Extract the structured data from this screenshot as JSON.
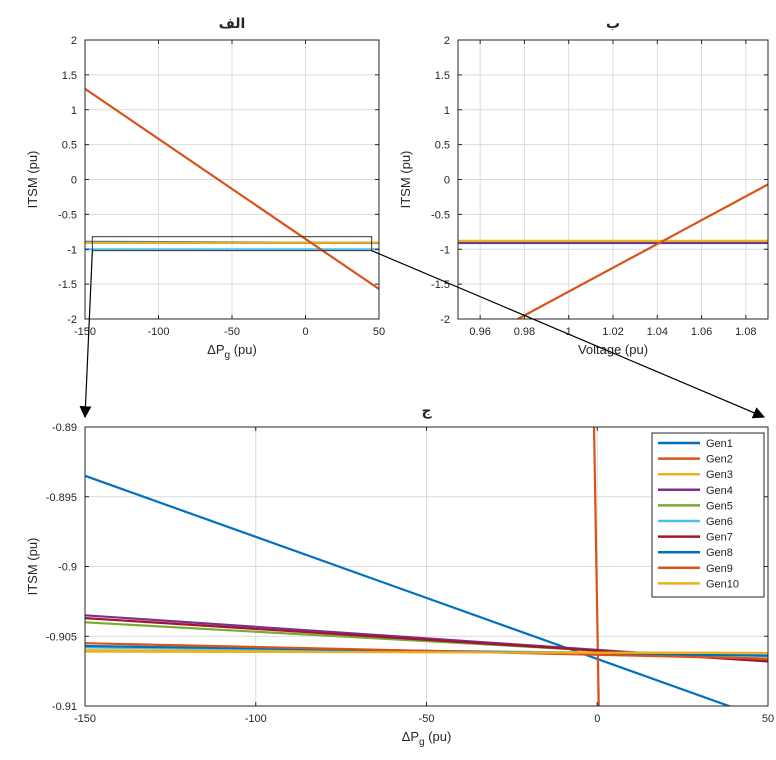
{
  "chart_data": [
    {
      "id": "a",
      "type": "line",
      "title": "الف",
      "xlabel": "ΔP",
      "xlabel_sub": "g",
      "xlabel_unit": " (pu)",
      "ylabel": "ITSM (pu)",
      "xlim": [
        -150,
        50
      ],
      "ylim": [
        -2,
        2
      ],
      "xticks": [
        -150,
        -100,
        -50,
        0,
        50
      ],
      "yticks": [
        -2,
        -1.5,
        -1,
        -0.5,
        0,
        0.5,
        1,
        1.5,
        2
      ],
      "grid": true,
      "zoom_box": {
        "x": [
          -145,
          45
        ],
        "y": [
          -1.02,
          -0.82
        ]
      },
      "series": [
        {
          "color": "#0072BD",
          "x": [
            -150,
            50
          ],
          "y": [
            -0.8935,
            -0.911
          ]
        },
        {
          "color": "#4DBEEE",
          "x": [
            -150,
            50
          ],
          "y": [
            -1.0,
            -1.0
          ]
        },
        {
          "color": "#77AC30",
          "x": [
            -150,
            50
          ],
          "y": [
            -0.904,
            -0.907
          ]
        },
        {
          "color": "#7E2F8E",
          "x": [
            -150,
            50
          ],
          "y": [
            -0.9035,
            -0.907
          ]
        },
        {
          "color": "#EDB120",
          "x": [
            -150,
            50
          ],
          "y": [
            -0.906,
            -0.9062
          ]
        },
        {
          "color": "#D95319",
          "x": [
            -150,
            50
          ],
          "y": [
            1.3,
            -1.57
          ]
        }
      ]
    },
    {
      "id": "b",
      "type": "line",
      "title": "ب",
      "xlabel": "Voltage (pu)",
      "ylabel": "ITSM (pu)",
      "xlim": [
        0.95,
        1.09
      ],
      "ylim": [
        -2,
        2
      ],
      "xticks": [
        0.96,
        0.98,
        1,
        1.02,
        1.04,
        1.06,
        1.08
      ],
      "xtick_labels": [
        "0.96",
        "0.98",
        "1",
        "1.02",
        "1.04",
        "1.06",
        "1.08"
      ],
      "yticks": [
        -2,
        -1.5,
        -1,
        -0.5,
        0,
        0.5,
        1,
        1.5,
        2
      ],
      "grid": true,
      "series": [
        {
          "color": "#0072BD",
          "x": [
            0.95,
            1.09
          ],
          "y": [
            -0.91,
            -0.91
          ]
        },
        {
          "color": "#77AC30",
          "x": [
            0.95,
            1.09
          ],
          "y": [
            -0.9,
            -0.9
          ]
        },
        {
          "color": "#7E2F8E",
          "x": [
            0.95,
            1.09
          ],
          "y": [
            -0.905,
            -0.905
          ]
        },
        {
          "color": "#EDB120",
          "x": [
            0.95,
            1.09
          ],
          "y": [
            -0.88,
            -0.88
          ]
        },
        {
          "color": "#D95319",
          "x": [
            0.977,
            1.09
          ],
          "y": [
            -2.0,
            -0.07
          ]
        }
      ]
    },
    {
      "id": "c",
      "type": "line",
      "title": "ج",
      "xlabel": "ΔP",
      "xlabel_sub": "g",
      "xlabel_unit": " (pu)",
      "ylabel": "ITSM (pu)",
      "xlim": [
        -150,
        50
      ],
      "ylim": [
        -0.91,
        -0.89
      ],
      "xticks": [
        -150,
        -100,
        -50,
        0,
        50
      ],
      "yticks": [
        -0.91,
        -0.905,
        -0.9,
        -0.895,
        -0.89
      ],
      "ytick_labels": [
        "-0.91",
        "-0.905",
        "-0.9",
        "-0.895",
        "-0.89"
      ],
      "grid": true,
      "legend_position": "top-right",
      "series": [
        {
          "name": "Gen1",
          "color": "#0072BD",
          "x": [
            -150,
            50
          ],
          "y": [
            -0.8935,
            -0.911
          ]
        },
        {
          "name": "Gen2",
          "color": "#D95319",
          "x": [
            -1,
            0.5
          ],
          "y": [
            -0.889,
            -0.911
          ]
        },
        {
          "name": "Gen3",
          "color": "#EDB120",
          "x": [
            -150,
            50
          ],
          "y": [
            -0.906,
            -0.9062
          ]
        },
        {
          "name": "Gen4",
          "color": "#7E2F8E",
          "x": [
            -150,
            50
          ],
          "y": [
            -0.9035,
            -0.9068
          ]
        },
        {
          "name": "Gen5",
          "color": "#77AC30",
          "x": [
            -150,
            50
          ],
          "y": [
            -0.904,
            -0.9067
          ]
        },
        {
          "name": "Gen6",
          "color": "#4DBEEE",
          "x": [
            -150,
            50
          ],
          "y": [
            -0.9058,
            -0.9063
          ]
        },
        {
          "name": "Gen7",
          "color": "#A2142F",
          "x": [
            -150,
            50
          ],
          "y": [
            -0.9037,
            -0.9068
          ]
        },
        {
          "name": "Gen8",
          "color": "#0072BD",
          "x": [
            -150,
            50
          ],
          "y": [
            -0.9057,
            -0.9064
          ]
        },
        {
          "name": "Gen9",
          "color": "#D95319",
          "x": [
            -150,
            50
          ],
          "y": [
            -0.9055,
            -0.9066
          ]
        },
        {
          "name": "Gen10",
          "color": "#EDB120",
          "x": [
            -150,
            50
          ],
          "y": [
            -0.9061,
            -0.9062
          ]
        }
      ]
    }
  ]
}
